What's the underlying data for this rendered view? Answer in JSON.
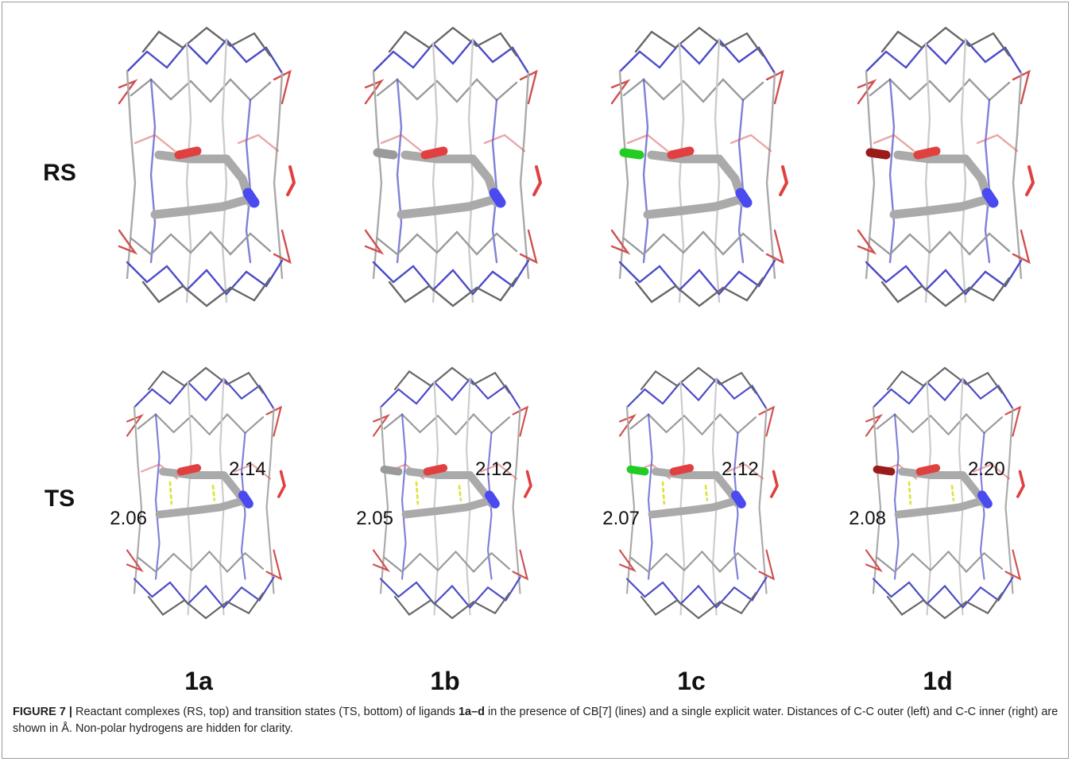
{
  "rows": [
    {
      "label": "RS"
    },
    {
      "label": "TS"
    }
  ],
  "columns": [
    {
      "label": "1a",
      "outer_distance": "2.06",
      "inner_distance": "2.14"
    },
    {
      "label": "1b",
      "outer_distance": "2.05",
      "inner_distance": "2.12"
    },
    {
      "label": "1c",
      "outer_distance": "2.07",
      "inner_distance": "2.12"
    },
    {
      "label": "1d",
      "outer_distance": "2.08",
      "inner_distance": "2.20"
    }
  ],
  "caption": {
    "figure_label": "FIGURE 7 |",
    "text_1": "Reactant complexes (RS, top) and transition states (TS, bottom) of ligands ",
    "bold_1": "1a–d",
    "text_2": " in the presence of CB[7] (lines) and a single explicit water. Distances of C-C outer (left) and C-C inner (right) are shown in Å. Non-polar hydrogens are hidden for clarity."
  }
}
